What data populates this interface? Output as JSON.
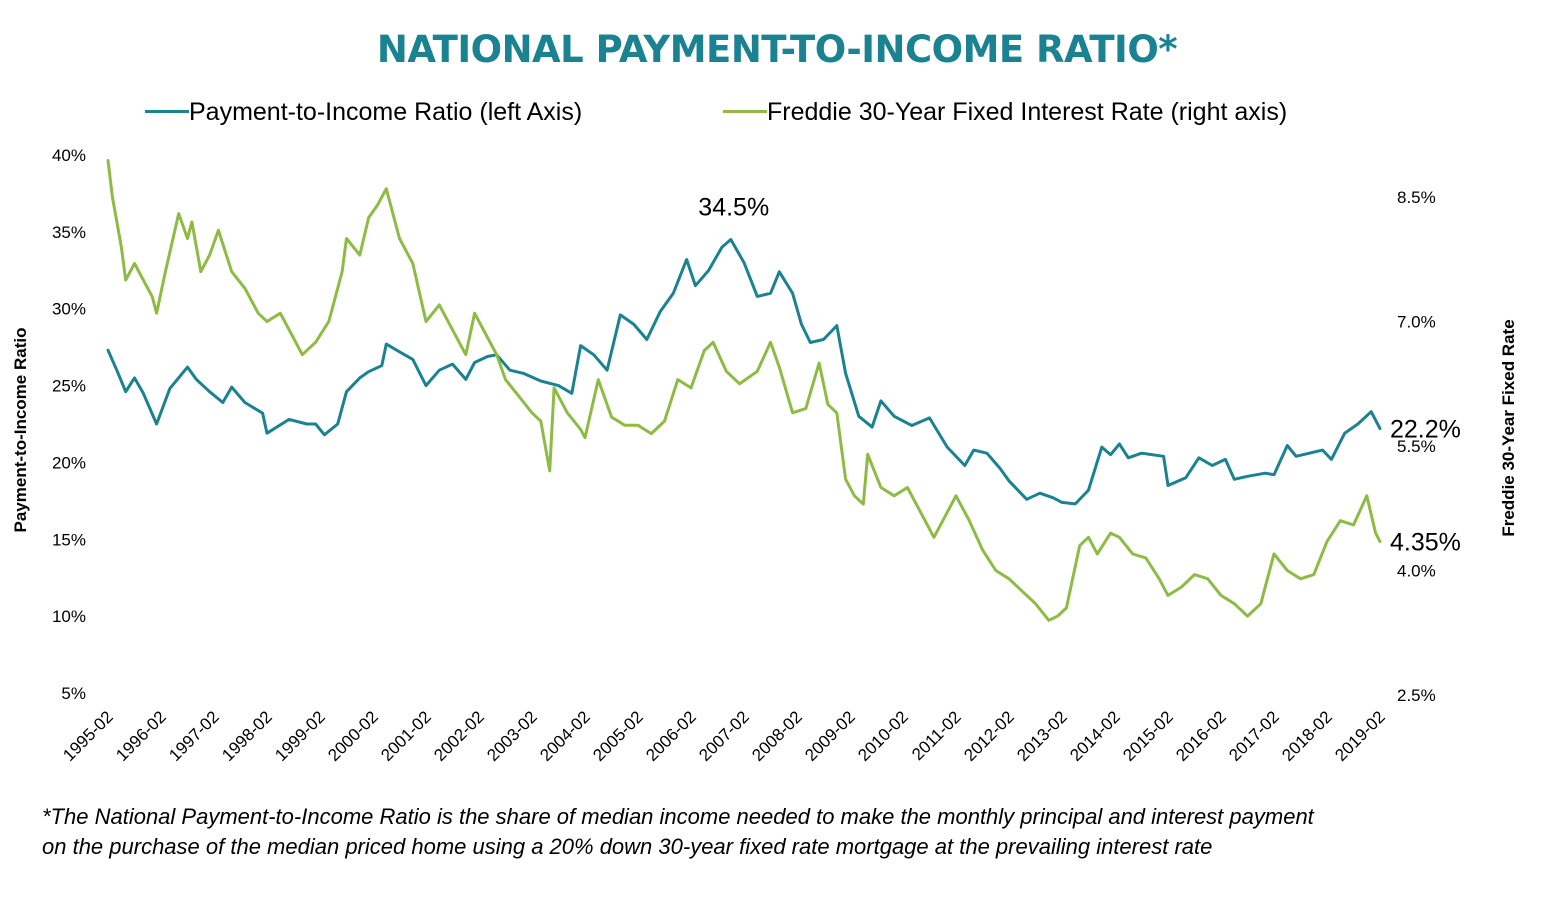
{
  "chart_data": {
    "type": "line",
    "title": "NATIONAL PAYMENT-TO-INCOME RATIO*",
    "legend_placement": "top",
    "grid": false,
    "colors": {
      "title": "#1a8290",
      "pti": "#1a8290",
      "rate": "#8dbb44"
    },
    "left_axis": {
      "label": "Payment-to-Income Ratio",
      "range": [
        5,
        40
      ],
      "ticks": [
        "40%",
        "35%",
        "30%",
        "25%",
        "20%",
        "15%",
        "10%",
        "5%"
      ]
    },
    "right_axis": {
      "label": "Freddie 30-Year Fixed Rate",
      "range": [
        2.5,
        9.0
      ],
      "ticks": [
        "8.5%",
        "7.0%",
        "5.5%",
        "4.0%",
        "2.5%"
      ]
    },
    "x_ticks": [
      "1995-02",
      "1996-02",
      "1997-02",
      "1998-02",
      "1999-02",
      "2000-02",
      "2001-02",
      "2002-02",
      "2003-02",
      "2004-02",
      "2005-02",
      "2006-02",
      "2007-02",
      "2008-02",
      "2009-02",
      "2010-02",
      "2011-02",
      "2012-02",
      "2013-02",
      "2014-02",
      "2015-02",
      "2016-02",
      "2017-02",
      "2018-02",
      "2019-02"
    ],
    "series": [
      {
        "name": "Payment-to-Income Ratio (left Axis)",
        "axis": "left",
        "points": [
          [
            "1995-02",
            27.3
          ],
          [
            "1995-04",
            26.0
          ],
          [
            "1995-06",
            24.6
          ],
          [
            "1995-08",
            25.5
          ],
          [
            "1995-10",
            24.5
          ],
          [
            "1996-01",
            22.5
          ],
          [
            "1996-04",
            24.8
          ],
          [
            "1996-08",
            26.2
          ],
          [
            "1996-10",
            25.4
          ],
          [
            "1997-01",
            24.6
          ],
          [
            "1997-04",
            23.9
          ],
          [
            "1997-06",
            24.9
          ],
          [
            "1997-09",
            23.9
          ],
          [
            "1998-01",
            23.2
          ],
          [
            "1998-02",
            21.9
          ],
          [
            "1998-07",
            22.8
          ],
          [
            "1998-11",
            22.5
          ],
          [
            "1999-01",
            22.5
          ],
          [
            "1999-03",
            21.8
          ],
          [
            "1999-06",
            22.5
          ],
          [
            "1999-08",
            24.6
          ],
          [
            "1999-11",
            25.5
          ],
          [
            "2000-01",
            25.9
          ],
          [
            "2000-04",
            26.3
          ],
          [
            "2000-05",
            27.7
          ],
          [
            "2000-08",
            27.2
          ],
          [
            "2000-11",
            26.7
          ],
          [
            "2001-02",
            25.0
          ],
          [
            "2001-05",
            26.0
          ],
          [
            "2001-08",
            26.4
          ],
          [
            "2001-11",
            25.4
          ],
          [
            "2002-01",
            26.5
          ],
          [
            "2002-04",
            26.9
          ],
          [
            "2002-06",
            27.0
          ],
          [
            "2002-09",
            26.0
          ],
          [
            "2002-12",
            25.8
          ],
          [
            "2003-04",
            25.3
          ],
          [
            "2003-08",
            25.0
          ],
          [
            "2003-11",
            24.5
          ],
          [
            "2004-01",
            27.6
          ],
          [
            "2004-04",
            27.0
          ],
          [
            "2004-07",
            26.0
          ],
          [
            "2004-10",
            29.6
          ],
          [
            "2005-01",
            29.0
          ],
          [
            "2005-04",
            28.0
          ],
          [
            "2005-07",
            29.8
          ],
          [
            "2005-10",
            31.0
          ],
          [
            "2006-01",
            33.2
          ],
          [
            "2006-03",
            31.5
          ],
          [
            "2006-06",
            32.5
          ],
          [
            "2006-09",
            34.0
          ],
          [
            "2006-11",
            34.5
          ],
          [
            "2007-02",
            33.0
          ],
          [
            "2007-05",
            30.8
          ],
          [
            "2007-08",
            31.0
          ],
          [
            "2007-10",
            32.4
          ],
          [
            "2008-01",
            31.0
          ],
          [
            "2008-03",
            29.0
          ],
          [
            "2008-05",
            27.8
          ],
          [
            "2008-08",
            28.0
          ],
          [
            "2008-11",
            28.9
          ],
          [
            "2009-01",
            25.8
          ],
          [
            "2009-04",
            23.0
          ],
          [
            "2009-07",
            22.3
          ],
          [
            "2009-09",
            24.0
          ],
          [
            "2009-12",
            23.0
          ],
          [
            "2010-04",
            22.4
          ],
          [
            "2010-08",
            22.9
          ],
          [
            "2010-12",
            21.0
          ],
          [
            "2011-04",
            19.8
          ],
          [
            "2011-06",
            20.8
          ],
          [
            "2011-09",
            20.6
          ],
          [
            "2011-12",
            19.6
          ],
          [
            "2012-02",
            18.8
          ],
          [
            "2012-06",
            17.6
          ],
          [
            "2012-09",
            18.0
          ],
          [
            "2012-12",
            17.7
          ],
          [
            "2013-02",
            17.4
          ],
          [
            "2013-05",
            17.3
          ],
          [
            "2013-08",
            18.2
          ],
          [
            "2013-11",
            21.0
          ],
          [
            "2014-01",
            20.5
          ],
          [
            "2014-03",
            21.2
          ],
          [
            "2014-05",
            20.3
          ],
          [
            "2014-08",
            20.6
          ],
          [
            "2015-01",
            20.4
          ],
          [
            "2015-02",
            18.5
          ],
          [
            "2015-06",
            19.0
          ],
          [
            "2015-09",
            20.3
          ],
          [
            "2015-12",
            19.8
          ],
          [
            "2016-03",
            20.2
          ],
          [
            "2016-05",
            18.9
          ],
          [
            "2016-08",
            19.1
          ],
          [
            "2016-12",
            19.3
          ],
          [
            "2017-02",
            19.2
          ],
          [
            "2017-05",
            21.1
          ],
          [
            "2017-07",
            20.4
          ],
          [
            "2017-10",
            20.6
          ],
          [
            "2018-01",
            20.8
          ],
          [
            "2018-03",
            20.2
          ],
          [
            "2018-06",
            21.9
          ],
          [
            "2018-09",
            22.5
          ],
          [
            "2018-12",
            23.3
          ],
          [
            "2019-02",
            22.2
          ]
        ]
      },
      {
        "name": "Freddie 30-Year Fixed Interest Rate (right axis)",
        "axis": "right",
        "points": [
          [
            "1995-02",
            8.94
          ],
          [
            "1995-03",
            8.5
          ],
          [
            "1995-05",
            7.9
          ],
          [
            "1995-06",
            7.5
          ],
          [
            "1995-08",
            7.7
          ],
          [
            "1995-10",
            7.5
          ],
          [
            "1995-12",
            7.3
          ],
          [
            "1996-01",
            7.1
          ],
          [
            "1996-03",
            7.6
          ],
          [
            "1996-06",
            8.3
          ],
          [
            "1996-08",
            8.0
          ],
          [
            "1996-09",
            8.2
          ],
          [
            "1996-11",
            7.6
          ],
          [
            "1997-01",
            7.8
          ],
          [
            "1997-03",
            8.1
          ],
          [
            "1997-06",
            7.6
          ],
          [
            "1997-09",
            7.4
          ],
          [
            "1997-12",
            7.1
          ],
          [
            "1998-02",
            7.0
          ],
          [
            "1998-05",
            7.1
          ],
          [
            "1998-08",
            6.8
          ],
          [
            "1998-10",
            6.6
          ],
          [
            "1999-01",
            6.75
          ],
          [
            "1999-04",
            7.0
          ],
          [
            "1999-07",
            7.6
          ],
          [
            "1999-08",
            8.0
          ],
          [
            "1999-11",
            7.8
          ],
          [
            "2000-01",
            8.25
          ],
          [
            "2000-03",
            8.4
          ],
          [
            "2000-05",
            8.6
          ],
          [
            "2000-08",
            8.0
          ],
          [
            "2000-11",
            7.7
          ],
          [
            "2001-02",
            7.0
          ],
          [
            "2001-05",
            7.2
          ],
          [
            "2001-08",
            6.9
          ],
          [
            "2001-11",
            6.6
          ],
          [
            "2002-01",
            7.1
          ],
          [
            "2002-04",
            6.8
          ],
          [
            "2002-06",
            6.6
          ],
          [
            "2002-08",
            6.3
          ],
          [
            "2002-11",
            6.1
          ],
          [
            "2003-02",
            5.9
          ],
          [
            "2003-04",
            5.8
          ],
          [
            "2003-06",
            5.2
          ],
          [
            "2003-07",
            6.2
          ],
          [
            "2003-10",
            5.9
          ],
          [
            "2004-01",
            5.7
          ],
          [
            "2004-02",
            5.6
          ],
          [
            "2004-05",
            6.3
          ],
          [
            "2004-08",
            5.85
          ],
          [
            "2004-11",
            5.75
          ],
          [
            "2005-02",
            5.75
          ],
          [
            "2005-05",
            5.65
          ],
          [
            "2005-08",
            5.8
          ],
          [
            "2005-11",
            6.3
          ],
          [
            "2006-02",
            6.2
          ],
          [
            "2006-05",
            6.65
          ],
          [
            "2006-07",
            6.75
          ],
          [
            "2006-10",
            6.4
          ],
          [
            "2007-01",
            6.25
          ],
          [
            "2007-05",
            6.4
          ],
          [
            "2007-08",
            6.75
          ],
          [
            "2007-10",
            6.45
          ],
          [
            "2008-01",
            5.9
          ],
          [
            "2008-04",
            5.95
          ],
          [
            "2008-07",
            6.5
          ],
          [
            "2008-09",
            6.0
          ],
          [
            "2008-11",
            5.9
          ],
          [
            "2009-01",
            5.1
          ],
          [
            "2009-03",
            4.9
          ],
          [
            "2009-05",
            4.8
          ],
          [
            "2009-06",
            5.4
          ],
          [
            "2009-09",
            5.0
          ],
          [
            "2009-12",
            4.9
          ],
          [
            "2010-03",
            5.0
          ],
          [
            "2010-06",
            4.7
          ],
          [
            "2010-09",
            4.4
          ],
          [
            "2010-12",
            4.7
          ],
          [
            "2011-02",
            4.9
          ],
          [
            "2011-05",
            4.6
          ],
          [
            "2011-08",
            4.25
          ],
          [
            "2011-11",
            4.0
          ],
          [
            "2012-02",
            3.9
          ],
          [
            "2012-05",
            3.75
          ],
          [
            "2012-08",
            3.6
          ],
          [
            "2012-11",
            3.4
          ],
          [
            "2013-01",
            3.45
          ],
          [
            "2013-03",
            3.55
          ],
          [
            "2013-06",
            4.3
          ],
          [
            "2013-08",
            4.4
          ],
          [
            "2013-10",
            4.2
          ],
          [
            "2014-01",
            4.45
          ],
          [
            "2014-03",
            4.4
          ],
          [
            "2014-06",
            4.2
          ],
          [
            "2014-09",
            4.15
          ],
          [
            "2014-12",
            3.9
          ],
          [
            "2015-02",
            3.7
          ],
          [
            "2015-05",
            3.8
          ],
          [
            "2015-08",
            3.95
          ],
          [
            "2015-11",
            3.9
          ],
          [
            "2016-02",
            3.7
          ],
          [
            "2016-05",
            3.6
          ],
          [
            "2016-08",
            3.45
          ],
          [
            "2016-11",
            3.6
          ],
          [
            "2017-02",
            4.2
          ],
          [
            "2017-05",
            4.0
          ],
          [
            "2017-08",
            3.9
          ],
          [
            "2017-11",
            3.95
          ],
          [
            "2018-02",
            4.35
          ],
          [
            "2018-05",
            4.6
          ],
          [
            "2018-08",
            4.55
          ],
          [
            "2018-11",
            4.9
          ],
          [
            "2019-01",
            4.45
          ],
          [
            "2019-02",
            4.35
          ]
        ]
      }
    ],
    "annotations": [
      {
        "text": "34.5%",
        "at": [
          "2006-11",
          34.5
        ],
        "axis": "left"
      },
      {
        "text": "22.2%",
        "at": [
          "2019-02",
          22.2
        ],
        "axis": "left"
      },
      {
        "text": "4.35%",
        "at": [
          "2019-02",
          4.35
        ],
        "axis": "right"
      }
    ],
    "footnote": [
      "*The National Payment-to-Income Ratio is the share of median income needed to make the monthly principal and interest payment",
      "on the purchase of the median priced home using a 20% down 30-year fixed rate mortgage at the prevailing interest rate"
    ]
  }
}
